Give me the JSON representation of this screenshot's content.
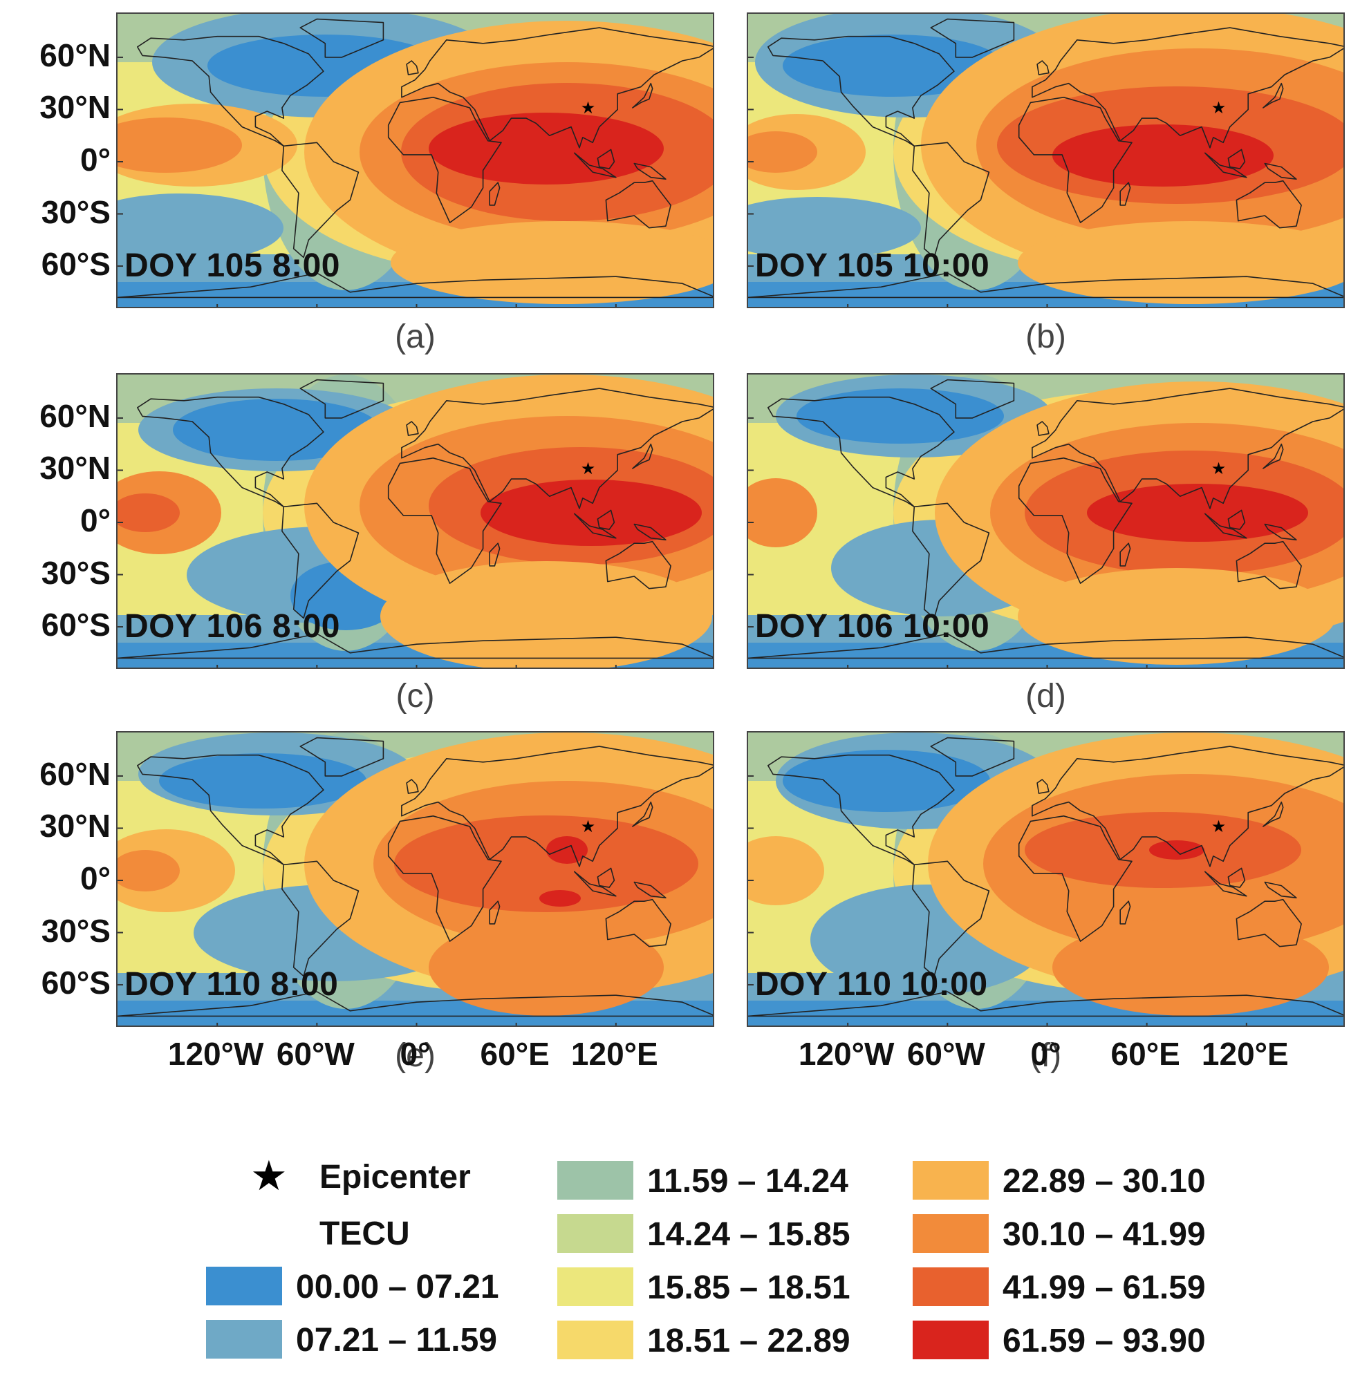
{
  "panels": [
    {
      "id": "a",
      "label": "DOY 105 8:00",
      "caption": "(a)"
    },
    {
      "id": "b",
      "label": "DOY 105 10:00",
      "caption": "(b)"
    },
    {
      "id": "c",
      "label": "DOY 106 8:00",
      "caption": "(c)"
    },
    {
      "id": "d",
      "label": "DOY 106 10:00",
      "caption": "(d)"
    },
    {
      "id": "e",
      "label": "DOY 110 8:00",
      "caption": "(e)"
    },
    {
      "id": "f",
      "label": "DOY 110 10:00",
      "caption": "(f)"
    }
  ],
  "lat_ticks": [
    "60°N",
    "30°N",
    "0°",
    "30°S",
    "60°S"
  ],
  "lon_ticks": [
    "120°W",
    "60°W",
    "0°",
    "60°E",
    "120°E"
  ],
  "legend": {
    "epicenter_label": "Epicenter",
    "unit_label": "TECU",
    "classes": [
      {
        "range": "00.00 – 07.21",
        "color": "#3b8fd0"
      },
      {
        "range": "07.21 – 11.59",
        "color": "#6fa9c6"
      },
      {
        "range": "11.59 – 14.24",
        "color": "#9dc3a8"
      },
      {
        "range": "14.24 – 15.85",
        "color": "#c6d98f"
      },
      {
        "range": "15.85 – 18.51",
        "color": "#ece77c"
      },
      {
        "range": "18.51 – 22.89",
        "color": "#f6d96a"
      },
      {
        "range": "22.89 – 30.10",
        "color": "#f8b34e"
      },
      {
        "range": "30.10 – 41.99",
        "color": "#f28b3a"
      },
      {
        "range": "41.99 – 61.59",
        "color": "#e8612e"
      },
      {
        "range": "61.59 – 93.90",
        "color": "#d9241d"
      }
    ]
  },
  "epicenter": {
    "lon_deg": 103.2,
    "lat_deg": 31.0
  }
}
